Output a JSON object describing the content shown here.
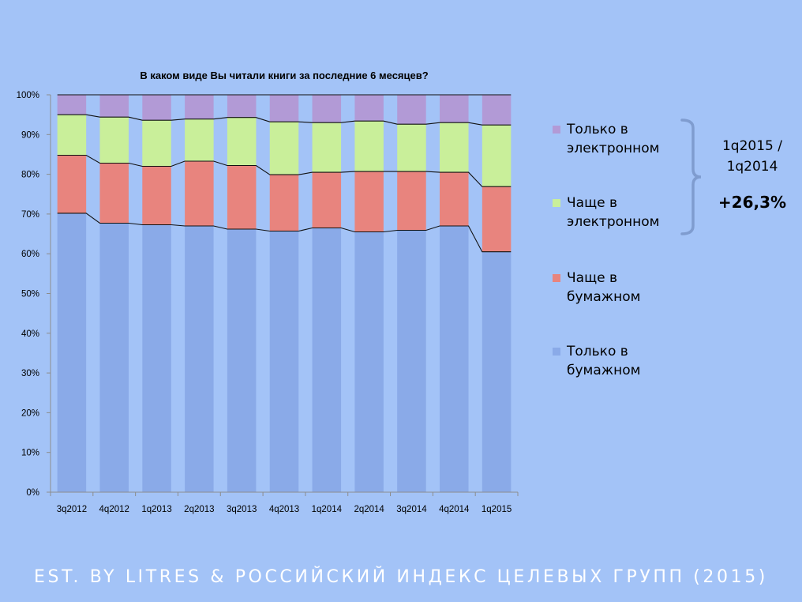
{
  "chart_data": {
    "type": "bar",
    "stacked": true,
    "percent_stacked": true,
    "title": "В каком виде Вы читали книги за последние 6 месяцев?",
    "categories": [
      "3q2012",
      "4q2012",
      "1q2013",
      "2q2013",
      "3q2013",
      "4q2013",
      "1q2014",
      "2q2014",
      "3q2014",
      "4q2014",
      "1q2015"
    ],
    "yticks": [
      "0%",
      "10%",
      "20%",
      "30%",
      "40%",
      "50%",
      "60%",
      "70%",
      "80%",
      "90%",
      "100%"
    ],
    "ylim": [
      0,
      100
    ],
    "grid": false,
    "legend_position": "right",
    "series": [
      {
        "name": "Только в бумажном",
        "color": "#8aaae8",
        "values": [
          70.2,
          67.7,
          67.3,
          67.0,
          66.2,
          65.7,
          66.5,
          65.5,
          65.9,
          67.0,
          60.5
        ]
      },
      {
        "name": "Чаще в бумажном",
        "color": "#e8847e",
        "values": [
          14.6,
          15.1,
          14.7,
          16.3,
          16.0,
          14.2,
          14.0,
          15.2,
          14.8,
          13.5,
          16.4
        ]
      },
      {
        "name": "Чаще в электронном",
        "color": "#c9ef9a",
        "values": [
          10.2,
          11.6,
          11.6,
          10.6,
          12.1,
          13.3,
          12.5,
          12.7,
          11.9,
          12.5,
          15.5
        ]
      },
      {
        "name": "Только в электронном",
        "color": "#b29ad6",
        "values": [
          5.0,
          5.6,
          6.4,
          6.1,
          5.7,
          6.8,
          7.0,
          6.6,
          7.4,
          7.0,
          7.6
        ]
      }
    ]
  },
  "annotation": {
    "comparison_line1": "1q2015 /",
    "comparison_line2": "1q2014",
    "growth": "+26,3%"
  },
  "footer": "EST. BY LITRES & РОССИЙСКИЙ ИНДЕКС ЦЕЛЕВЫХ ГРУПП (2015)"
}
